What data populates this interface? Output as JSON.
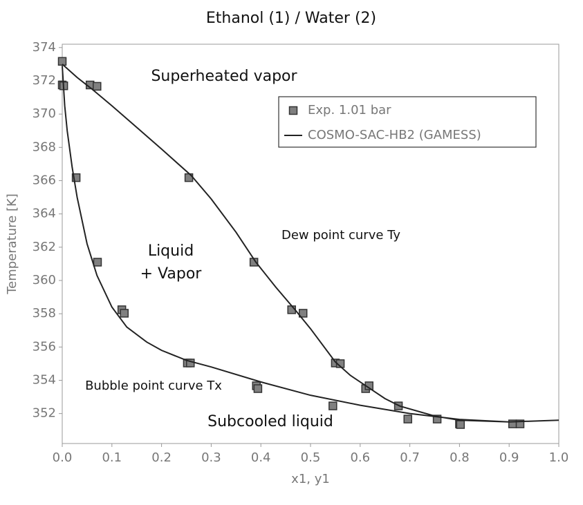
{
  "chart_data": {
    "type": "line",
    "title": "Ethanol (1) / Water (2)",
    "x_label": "x1, y1",
    "y_label": "Temperature [K]",
    "xlim": [
      0,
      1
    ],
    "ylim": [
      350.2,
      374.2
    ],
    "xticks": [
      {
        "value": 0,
        "label": "0.0"
      },
      0.1,
      0.2,
      0.3,
      0.4,
      0.5,
      0.6,
      0.7,
      0.8,
      0.9,
      {
        "value": 1,
        "label": "1.0"
      }
    ],
    "yticks": [
      352,
      354,
      356,
      358,
      360,
      362,
      364,
      366,
      368,
      370,
      372,
      374
    ],
    "grid": false,
    "legend": "upper right",
    "annotations": [
      "Superheated vapor",
      "Dew point curve Ty",
      "Liquid + Vapor",
      "Bubble point curve Tx",
      "Subcooled liquid"
    ],
    "series": [
      {
        "name": "Exp. 1.01 bar",
        "type": "scatter",
        "marker": "square",
        "color": "#808080",
        "x": [
          0,
          0,
          0.003,
          0.056,
          0.07,
          0.028,
          0.255,
          0.071,
          0.386,
          0.12,
          0.125,
          0.462,
          0.485,
          0.252,
          0.258,
          0.55,
          0.56,
          0.391,
          0.394,
          0.611,
          0.618,
          0.545,
          0.677,
          0.696,
          0.755,
          0.8,
          0.802,
          0.907,
          0.922
        ],
        "values": [
          373.17,
          371.75,
          371.7,
          371.75,
          371.67,
          366.18,
          366.18,
          361.1,
          361.1,
          358.24,
          358.03,
          358.24,
          358.03,
          355.04,
          355.04,
          355.04,
          355.0,
          353.67,
          353.5,
          353.5,
          353.67,
          352.46,
          352.46,
          351.67,
          351.67,
          351.38,
          351.34,
          351.38,
          351.38
        ]
      },
      {
        "name": "COSMO-SAC-HB2 (GAMESS)",
        "type": "line",
        "color": "#222222",
        "x": [
          0,
          0.03,
          0.06,
          0.1,
          0.15,
          0.2,
          0.26,
          0.3,
          0.35,
          0.39,
          0.43,
          0.47,
          0.5,
          0.55,
          0.58,
          0.62,
          0.65,
          0.68,
          0.75,
          0.8,
          0.9,
          1.0,
          null,
          0,
          0.005,
          0.01,
          0.02,
          0.03,
          0.05,
          0.07,
          0.1,
          0.13,
          0.17,
          0.2,
          0.25,
          0.3,
          0.4,
          0.5,
          0.6,
          0.7,
          0.8,
          0.9,
          1.0
        ],
        "values": [
          373.0,
          372.2,
          371.5,
          370.5,
          369.2,
          367.9,
          366.3,
          364.9,
          362.9,
          361.1,
          359.6,
          358.2,
          357.1,
          355.1,
          354.3,
          353.5,
          352.9,
          352.45,
          351.85,
          351.6,
          351.5,
          351.6,
          null,
          372.9,
          370.5,
          369.0,
          366.8,
          365.0,
          362.2,
          360.3,
          358.4,
          357.2,
          356.3,
          355.8,
          355.2,
          354.8,
          353.9,
          353.1,
          352.5,
          352.0,
          351.65,
          351.5,
          351.6
        ]
      }
    ]
  }
}
